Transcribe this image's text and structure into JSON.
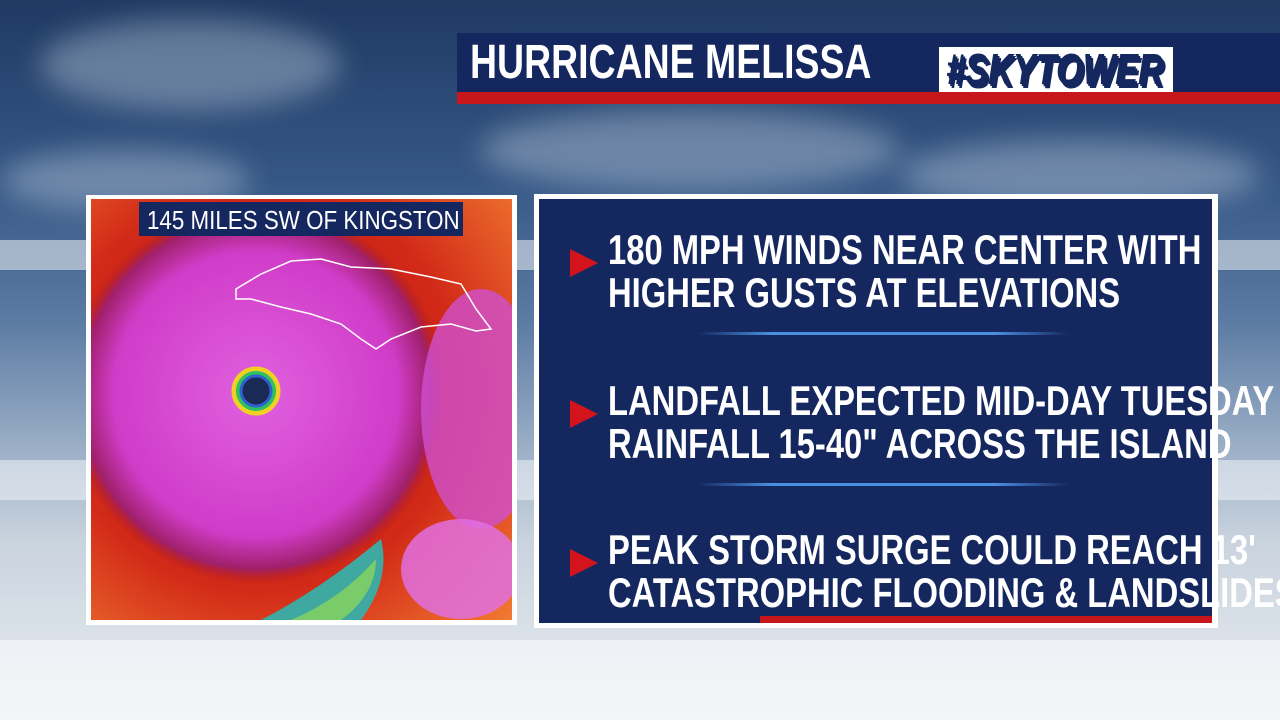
{
  "header": {
    "title": "HURRICANE MELISSA",
    "logo": "#SKYTOWER"
  },
  "map": {
    "label": "145 MILES SW OF KINGSTON"
  },
  "bullets": [
    {
      "lines": [
        "180 MPH WINDS NEAR CENTER WITH",
        "HIGHER GUSTS AT ELEVATIONS"
      ]
    },
    {
      "lines": [
        "LANDFALL EXPECTED MID-DAY TUESDAY",
        "RAINFALL 15-40\" ACROSS THE ISLAND"
      ]
    },
    {
      "lines": [
        "PEAK STORM SURGE COULD REACH 13'",
        "CATASTROPHIC FLOODING & LANDSLIDES"
      ]
    }
  ]
}
